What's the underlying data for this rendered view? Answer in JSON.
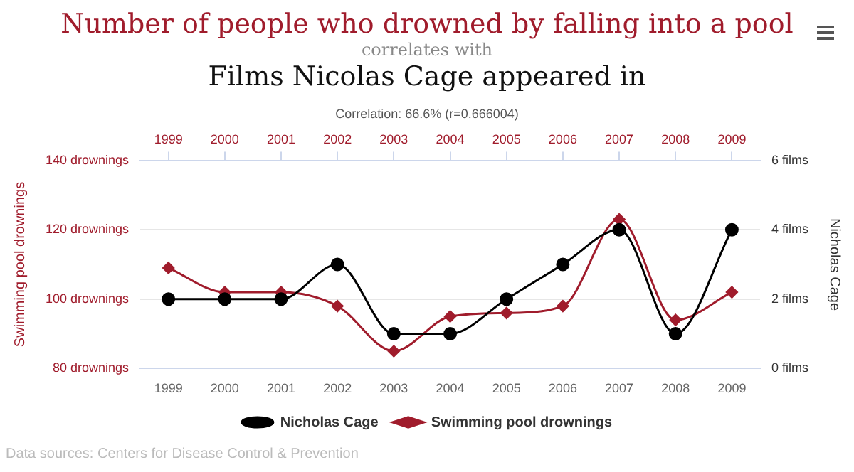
{
  "chart_data": {
    "type": "line",
    "title": "Number of people who drowned by falling into a pool",
    "subtitle": "correlates with",
    "annotations": [
      "Films Nicolas Cage appeared in",
      "Correlation: 66.6% (r=0.666004)",
      "Data sources: Centers for Disease Control & Prevention"
    ],
    "categories": [
      "1999",
      "2000",
      "2001",
      "2002",
      "2003",
      "2004",
      "2005",
      "2006",
      "2007",
      "2008",
      "2009"
    ],
    "series": [
      {
        "name": "Nicholas Cage",
        "color": "#000000",
        "axis": "y2",
        "marker": "circle",
        "values": [
          2,
          2,
          2,
          3,
          1,
          1,
          2,
          3,
          4,
          1,
          4
        ]
      },
      {
        "name": "Swimming pool drownings",
        "color": "#a01c2c",
        "marker": "diamond",
        "values": [
          109,
          102,
          102,
          98,
          85,
          95,
          96,
          98,
          123,
          94,
          102
        ]
      }
    ],
    "ylabel": "Swimming pool drownings",
    "y2label": "Nicholas Cage",
    "ylim": [
      80,
      140
    ],
    "yticks": [
      {
        "value": 80,
        "label": "80 drownings"
      },
      {
        "value": 100,
        "label": "100 drownings"
      },
      {
        "value": 120,
        "label": "120 drownings"
      },
      {
        "value": 140,
        "label": "140 drownings"
      }
    ],
    "y2lim": [
      0,
      6
    ],
    "y2ticks": [
      {
        "value": 0,
        "label": "0 films"
      },
      {
        "value": 2,
        "label": "2 films"
      },
      {
        "value": 4,
        "label": "4 films"
      },
      {
        "value": 6,
        "label": "6 films"
      }
    ],
    "grid": "y",
    "legend": "bottom"
  }
}
